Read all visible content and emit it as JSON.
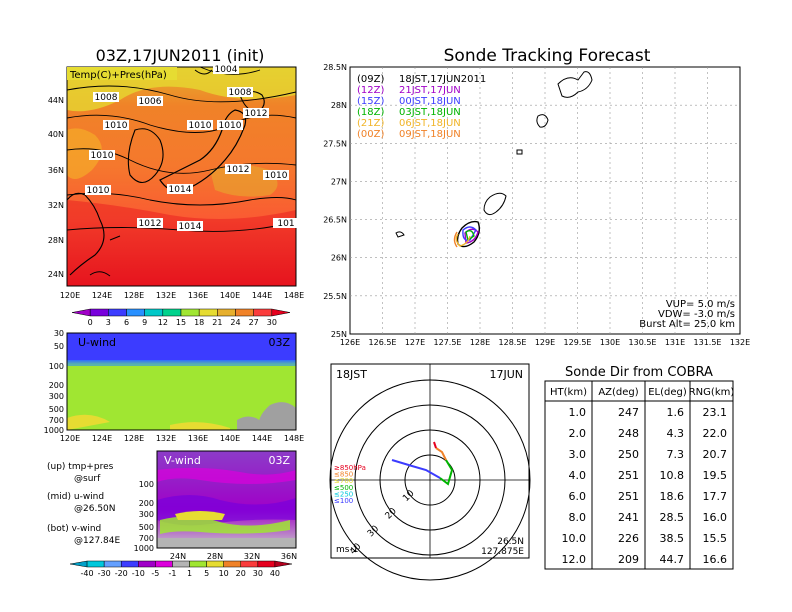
{
  "left": {
    "map_title": "03Z,17JUN2011 (init)",
    "map_label": "Temp(C)+Pres(hPa)",
    "map_lon_ticks": [
      "120E",
      "124E",
      "128E",
      "132E",
      "136E",
      "140E",
      "144E",
      "148E"
    ],
    "map_lat_ticks": [
      "44N",
      "40N",
      "36N",
      "32N",
      "28N",
      "24N"
    ],
    "isobar_labels": [
      "1008",
      "1006",
      "1008",
      "1010",
      "1010",
      "1012",
      "1010",
      "1010",
      "1010",
      "1014",
      "1012",
      "1010",
      "1012",
      "1014",
      "101",
      "1004"
    ],
    "temp_colorbar": [
      "0",
      "3",
      "6",
      "9",
      "12",
      "15",
      "18",
      "21",
      "24",
      "27",
      "30"
    ],
    "temp_colors": [
      "#a000c8",
      "#7800dc",
      "#3c3cff",
      "#2890ff",
      "#00c8c8",
      "#00d28c",
      "#a0e632",
      "#e6dc32",
      "#e6af2d",
      "#f08228",
      "#fa3c3c",
      "#e6001e"
    ],
    "u_title": "U-wind",
    "u_time": "03Z",
    "u_pres_ticks": [
      "30",
      "50",
      "100",
      "200",
      "300",
      "500",
      "700",
      "1000"
    ],
    "u_lon_ticks": [
      "120E",
      "124E",
      "128E",
      "132E",
      "136E",
      "140E",
      "144E",
      "148E"
    ],
    "v_title": "V-wind",
    "v_time": "03Z",
    "v_pres_ticks": [
      "100",
      "200",
      "300",
      "500",
      "700",
      "1000"
    ],
    "v_lat_ticks": [
      "24N",
      "28N",
      "32N",
      "36N"
    ],
    "notes": [
      {
        "a": "(up) tmp+pres",
        "b": "@surf"
      },
      {
        "a": "(mid) u-wind",
        "b": "@26.50N"
      },
      {
        "a": "(bot) v-wind",
        "b": "@127.84E"
      }
    ],
    "wind_colorbar": [
      "-40",
      "-30",
      "-20",
      "-10",
      "-5",
      "-1",
      "1",
      "5",
      "10",
      "20",
      "30",
      "40"
    ],
    "wind_colors": [
      "#00a0c8",
      "#00c8dc",
      "#64a0ff",
      "#3c3cff",
      "#a000c8",
      "#dc00dc",
      "#b4b4b4",
      "#a0e632",
      "#e6dc32",
      "#f08228",
      "#fa3c3c",
      "#e6001e",
      "#b4001e"
    ]
  },
  "tracking": {
    "title": "Sonde Tracking Forecast",
    "lat_ticks": [
      "28.5N",
      "28N",
      "27.5N",
      "27N",
      "26.5N",
      "26N",
      "25.5N",
      "25N"
    ],
    "lon_ticks": [
      "126E",
      "126.5E",
      "127E",
      "127.5E",
      "128E",
      "128.5E",
      "129E",
      "129.5E",
      "130E",
      "130.5E",
      "131E",
      "131.5E",
      "132E"
    ],
    "legend": [
      {
        "code": "(09Z)",
        "time": "18JST,17JUN2011",
        "color": "#000000"
      },
      {
        "code": "(12Z)",
        "time": "21JST,17JUN",
        "color": "#a000c8"
      },
      {
        "code": "(15Z)",
        "time": "00JST,18JUN",
        "color": "#3c3cff"
      },
      {
        "code": "(18Z)",
        "time": "03JST,18JUN",
        "color": "#00b400"
      },
      {
        "code": "(21Z)",
        "time": "06JST,18JUN",
        "color": "#f0b428"
      },
      {
        "code": "(00Z)",
        "time": "09JST,18JUN",
        "color": "#f08228"
      }
    ],
    "params": [
      "VUP=  5.0 m/s",
      "VDW= -3.0 m/s",
      "Burst Alt= 25.0 km"
    ]
  },
  "polar": {
    "time": "18JST",
    "date": "17JUN",
    "ring_labels": [
      "10",
      "20",
      "30",
      "40"
    ],
    "unit": "ms-1",
    "lat": "26.5N",
    "lon": "127.875E",
    "levels": [
      {
        "label": "≥850hPa",
        "color": "#e6001e"
      },
      {
        "label": "≤850",
        "color": "#f08228"
      },
      {
        "label": "≤700",
        "color": "#e6dc32"
      },
      {
        "label": "≤500",
        "color": "#00b400"
      },
      {
        "label": "≤250",
        "color": "#00c8dc"
      },
      {
        "label": "≤100",
        "color": "#3c3cff"
      }
    ]
  },
  "table": {
    "title": "Sonde Dir from COBRA",
    "headers": [
      "HT(km)",
      "AZ(deg)",
      "EL(deg)",
      "RNG(km)"
    ],
    "rows": [
      [
        "1.0",
        "247",
        "1.6",
        "23.1"
      ],
      [
        "2.0",
        "248",
        "4.3",
        "22.0"
      ],
      [
        "3.0",
        "250",
        "7.3",
        "20.7"
      ],
      [
        "4.0",
        "251",
        "10.8",
        "19.5"
      ],
      [
        "6.0",
        "251",
        "18.6",
        "17.7"
      ],
      [
        "8.0",
        "241",
        "28.5",
        "16.0"
      ],
      [
        "10.0",
        "226",
        "38.5",
        "15.5"
      ],
      [
        "12.0",
        "209",
        "44.7",
        "16.6"
      ]
    ]
  },
  "chart_data": [
    {
      "type": "heatmap",
      "title": "03Z,17JUN2011 (init)",
      "label": "Temp(C)+Pres(hPa)",
      "x_ticks": [
        "120E",
        "124E",
        "128E",
        "132E",
        "136E",
        "140E",
        "144E",
        "148E"
      ],
      "y_ticks": [
        "44N",
        "40N",
        "36N",
        "32N",
        "28N",
        "24N"
      ],
      "colorbar": [
        0,
        3,
        6,
        9,
        12,
        15,
        18,
        21,
        24,
        27,
        30
      ]
    },
    {
      "type": "heatmap",
      "title": "U-wind",
      "y_ticks_hPa": [
        30,
        50,
        100,
        200,
        300,
        500,
        700,
        1000
      ]
    },
    {
      "type": "heatmap",
      "title": "V-wind",
      "y_ticks_hPa": [
        100,
        200,
        300,
        500,
        700,
        1000
      ],
      "colorbar": [
        -40,
        -30,
        -20,
        -10,
        -5,
        -1,
        1,
        5,
        10,
        20,
        30,
        40
      ]
    },
    {
      "type": "line",
      "title": "Sonde Tracking Forecast",
      "xlim": [
        126,
        132
      ],
      "ylim": [
        25,
        28.5
      ],
      "launch": {
        "lon": 127.875,
        "lat": 26.5
      }
    },
    {
      "type": "table",
      "title": "Sonde Dir from COBRA",
      "columns": [
        "HT(km)",
        "AZ(deg)",
        "EL(deg)",
        "RNG(km)"
      ],
      "rows": [
        [
          1.0,
          247,
          1.6,
          23.1
        ],
        [
          2.0,
          248,
          4.3,
          22.0
        ],
        [
          3.0,
          250,
          7.3,
          20.7
        ],
        [
          4.0,
          251,
          10.8,
          19.5
        ],
        [
          6.0,
          251,
          18.6,
          17.7
        ],
        [
          8.0,
          241,
          28.5,
          16.0
        ],
        [
          10.0,
          226,
          38.5,
          15.5
        ],
        [
          12.0,
          209,
          44.7,
          16.6
        ]
      ]
    }
  ]
}
